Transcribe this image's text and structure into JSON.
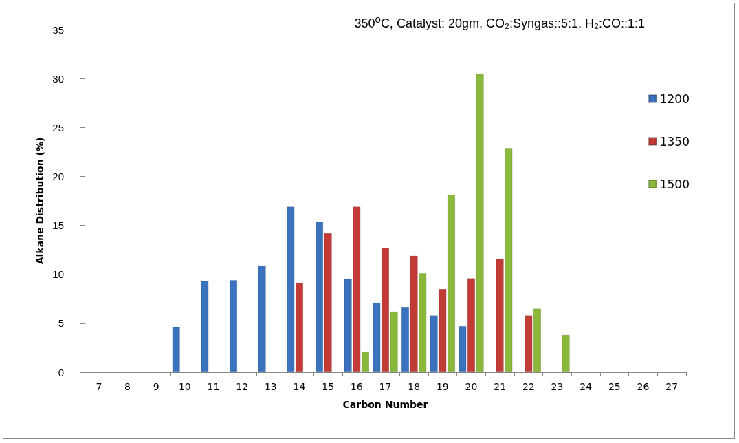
{
  "chart_data": {
    "type": "bar",
    "title": "350$^{o}$C, Catalyst: 20gm, CO₂:Syngas::5:1, H₂:CO::1:1",
    "xlabel": "Carbon Number",
    "ylabel": "Alkane Distribution (%)",
    "categories": [
      "7",
      "8",
      "9",
      "10",
      "11",
      "12",
      "13",
      "14",
      "15",
      "16",
      "17",
      "18",
      "19",
      "20",
      "21",
      "22",
      "23",
      "24",
      "25",
      "26",
      "27"
    ],
    "series": [
      {
        "name": "1200",
        "color": "#3a72bd",
        "values": [
          null,
          null,
          null,
          4.6,
          9.3,
          9.4,
          10.9,
          16.9,
          15.4,
          9.5,
          7.1,
          6.6,
          5.8,
          4.7,
          null,
          null,
          null,
          null,
          null,
          null,
          null
        ]
      },
      {
        "name": "1350",
        "color": "#c23b36",
        "values": [
          null,
          null,
          null,
          null,
          null,
          null,
          null,
          9.1,
          14.2,
          16.9,
          12.7,
          11.9,
          8.5,
          9.6,
          11.6,
          5.8,
          null,
          null,
          null,
          null,
          null
        ]
      },
      {
        "name": "1500",
        "color": "#8ab83a",
        "values": [
          null,
          null,
          null,
          null,
          null,
          null,
          null,
          null,
          null,
          2.1,
          6.2,
          10.1,
          18.1,
          30.5,
          22.9,
          6.5,
          3.8,
          null,
          null,
          null,
          null
        ]
      }
    ],
    "ylim": [
      0,
      35
    ],
    "yticks": [
      0,
      5,
      10,
      15,
      20,
      25,
      30,
      35
    ],
    "grid": false,
    "legend": "top right"
  }
}
